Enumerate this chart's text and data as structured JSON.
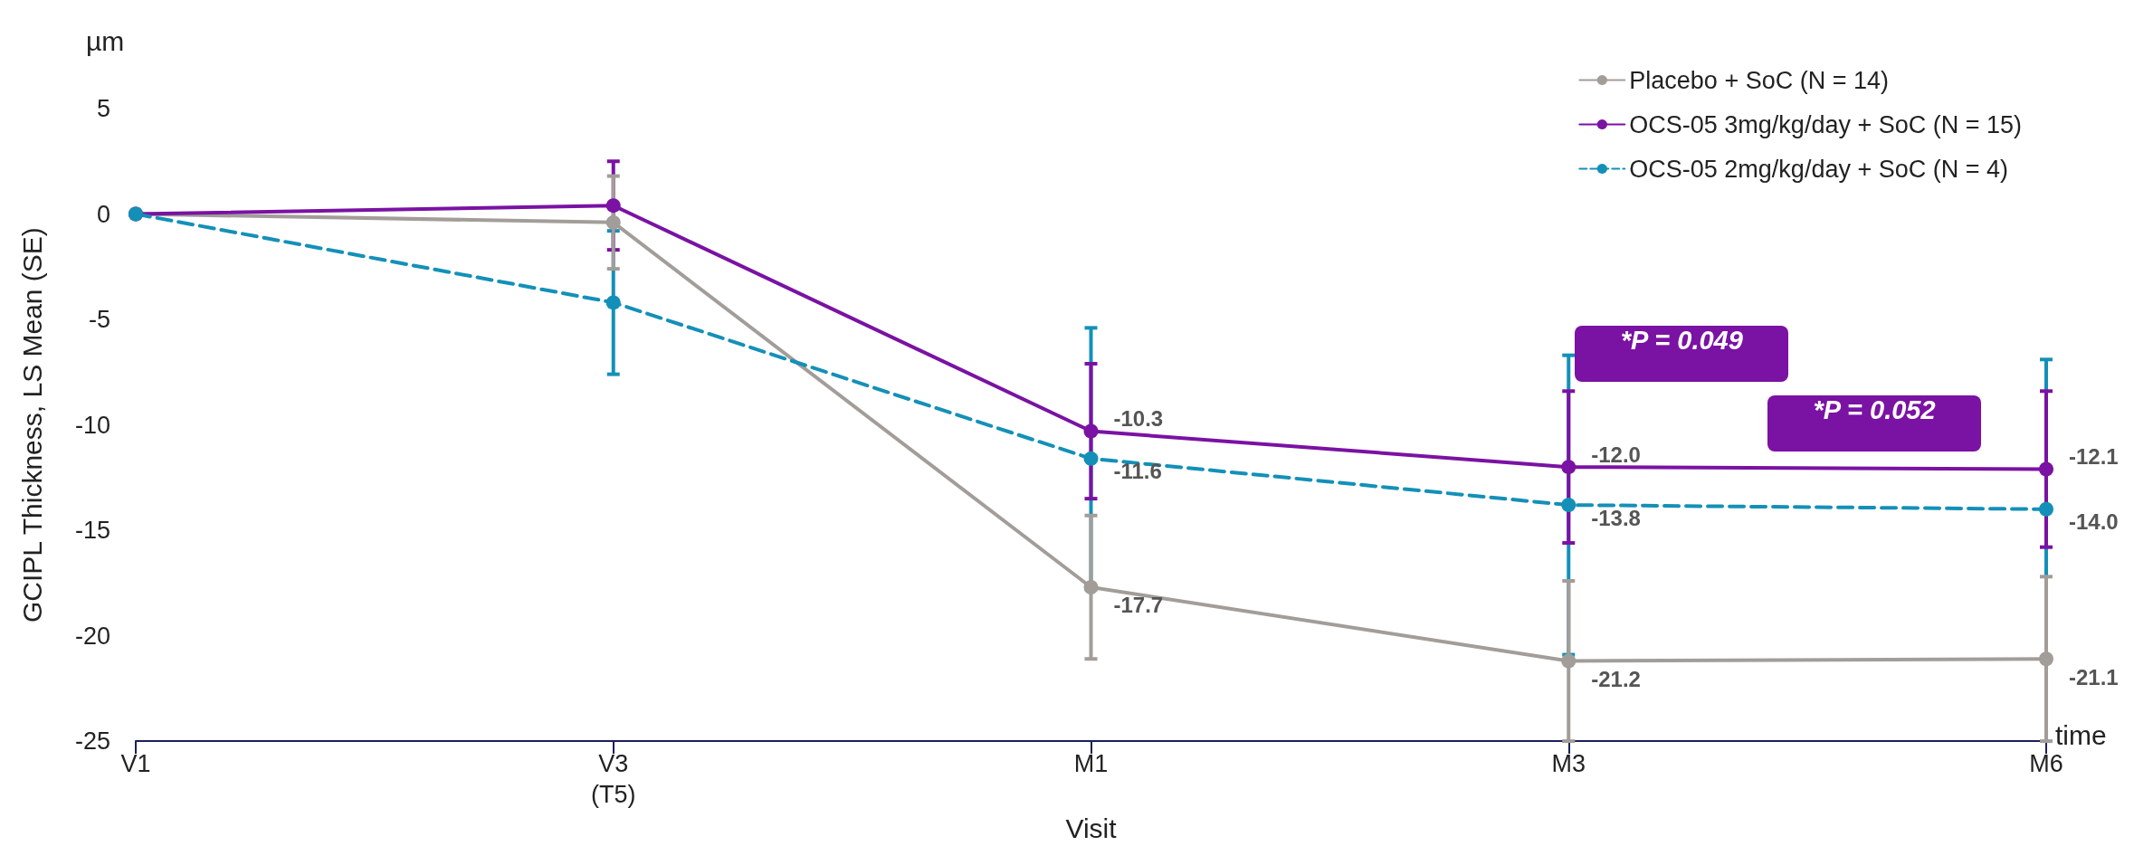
{
  "chart_data": {
    "type": "line",
    "xlabel": "Visit",
    "ylabel": "GCIPL Thickness, LS Mean (SE)",
    "annotations": [
      "µm",
      "time",
      "*P = 0.049",
      "*P = 0.052"
    ],
    "categories": [
      "V1",
      "V3\n(T5)",
      "M1",
      "M3",
      "M6"
    ],
    "ylim": [
      -25,
      5
    ],
    "yticks": [
      -25,
      -20,
      -15,
      -10,
      -5,
      0,
      5
    ],
    "grid": false,
    "legend": "top right",
    "marker": "circle",
    "series": [
      {
        "name": "Placebo + SoC (N = 14)",
        "color": "#a39d99",
        "values": [
          0,
          -0.4,
          -17.7,
          -21.2,
          -21.1
        ],
        "errors": [
          null,
          2.2,
          3.4,
          3.8,
          3.9
        ],
        "value_labels": [
          null,
          null,
          "-17.7",
          "-21.2",
          "-21.1"
        ],
        "line_style": "solid"
      },
      {
        "name": "OCS-05 3mg/kg/day + SoC (N = 15)",
        "color": "#7a12a3",
        "values": [
          0,
          0.4,
          -10.3,
          -12.0,
          -12.1
        ],
        "errors": [
          null,
          2.1,
          3.2,
          3.6,
          3.7
        ],
        "value_labels": [
          null,
          null,
          "-10.3",
          "-12.0",
          "-12.1"
        ],
        "line_style": "solid"
      },
      {
        "name": "OCS-05 2mg/kg/day + SoC (N = 4)",
        "color": "#1490b8",
        "values": [
          0,
          -4.2,
          -11.6,
          -13.8,
          -14.0
        ],
        "errors": [
          null,
          3.4,
          6.2,
          7.1,
          7.1
        ],
        "value_labels": [
          null,
          null,
          "-11.6",
          "-13.8",
          "-14.0"
        ],
        "line_style": "dashed"
      }
    ]
  }
}
